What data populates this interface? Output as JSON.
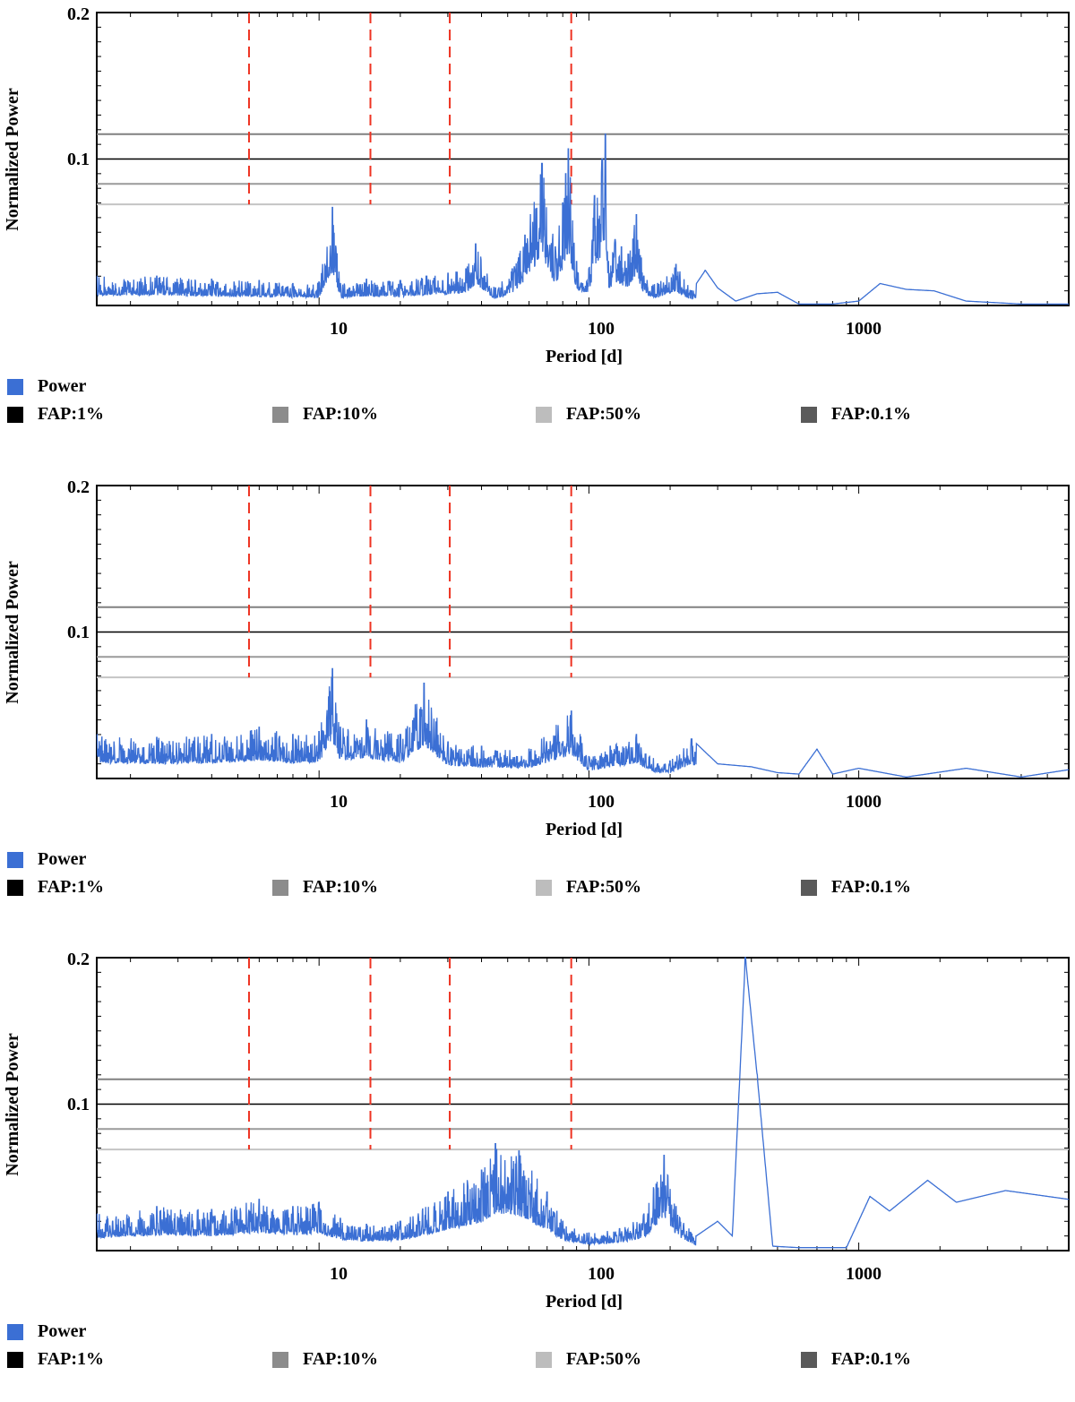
{
  "chart_data": [
    {
      "type": "line",
      "xlabel": "Period [d]",
      "ylabel": "Normalized Power",
      "xscale": "log",
      "xlim": [
        1.5,
        6000
      ],
      "ylim": [
        0,
        0.2
      ],
      "x_ticks": [
        "10",
        "100",
        "1000"
      ],
      "y_ticks": [
        "0.1",
        "0.2"
      ],
      "fap_levels": {
        "FAP:0.1%": 0.117,
        "FAP:1%": 0.1,
        "FAP:10%": 0.083,
        "FAP:50%": 0.069
      },
      "vlines": [
        5.5,
        15.5,
        30.5,
        86
      ],
      "series": [
        {
          "name": "Power",
          "x": [
            1.5,
            2.5,
            4,
            6,
            8,
            10,
            11.2,
            12,
            15,
            20,
            25,
            30,
            35,
            38,
            45,
            52,
            58,
            67,
            75,
            80,
            82,
            84,
            90,
            100,
            105,
            112,
            115,
            118,
            125,
            132,
            140,
            150,
            160,
            180,
            210,
            240,
            270,
            300,
            350,
            420,
            500,
            600,
            800,
            1000,
            1200,
            1500,
            1900,
            2500,
            4000,
            6000
          ],
          "y": [
            0.02,
            0.02,
            0.018,
            0.017,
            0.015,
            0.016,
            0.067,
            0.015,
            0.018,
            0.017,
            0.02,
            0.022,
            0.025,
            0.042,
            0.012,
            0.025,
            0.048,
            0.097,
            0.04,
            0.07,
            0.09,
            0.107,
            0.03,
            0.025,
            0.075,
            0.1,
            0.117,
            0.03,
            0.045,
            0.04,
            0.035,
            0.062,
            0.02,
            0.015,
            0.028,
            0.01,
            0.024,
            0.012,
            0.003,
            0.008,
            0.009,
            0.001,
            0.001,
            0.003,
            0.015,
            0.011,
            0.01,
            0.003,
            0.001,
            0.001
          ]
        }
      ]
    },
    {
      "type": "line",
      "xlabel": "Period [d]",
      "ylabel": "Normalized Power",
      "xscale": "log",
      "xlim": [
        1.5,
        6000
      ],
      "ylim": [
        0,
        0.2
      ],
      "x_ticks": [
        "10",
        "100",
        "1000"
      ],
      "y_ticks": [
        "0.1",
        "0.2"
      ],
      "fap_levels": {
        "FAP:0.1%": 0.117,
        "FAP:1%": 0.1,
        "FAP:10%": 0.083,
        "FAP:50%": 0.069
      },
      "vlines": [
        5.5,
        15.5,
        30.5,
        86
      ],
      "series": [
        {
          "name": "Power",
          "x": [
            1.5,
            2.5,
            4,
            6,
            8,
            10,
            11.2,
            12,
            15,
            20,
            24.5,
            30,
            40,
            60,
            86,
            100,
            120,
            150,
            180,
            200,
            240,
            300,
            400,
            500,
            600,
            700,
            800,
            1000,
            1500,
            2500,
            4000,
            6000
          ],
          "y": [
            0.03,
            0.028,
            0.03,
            0.035,
            0.03,
            0.032,
            0.075,
            0.035,
            0.04,
            0.03,
            0.065,
            0.025,
            0.022,
            0.02,
            0.046,
            0.015,
            0.022,
            0.03,
            0.01,
            0.012,
            0.027,
            0.01,
            0.008,
            0.004,
            0.003,
            0.02,
            0.003,
            0.007,
            0.001,
            0.007,
            0.001,
            0.006
          ]
        }
      ]
    },
    {
      "type": "line",
      "xlabel": "Period [d]",
      "ylabel": "Normalized Power",
      "xscale": "log",
      "xlim": [
        1.5,
        6000
      ],
      "ylim": [
        0,
        0.2
      ],
      "x_ticks": [
        "10",
        "100",
        "1000"
      ],
      "y_ticks": [
        "0.1",
        "0.2"
      ],
      "fap_levels": {
        "FAP:0.1%": 0.117,
        "FAP:1%": 0.1,
        "FAP:10%": 0.083,
        "FAP:50%": 0.069
      },
      "vlines": [
        5.5,
        15.5,
        30.5,
        86
      ],
      "series": [
        {
          "name": "Power",
          "x": [
            1.5,
            2.5,
            4,
            6,
            8,
            10,
            12,
            15,
            20,
            30,
            40,
            45,
            55,
            70,
            80,
            100,
            130,
            160,
            190,
            210,
            250,
            300,
            340,
            380,
            420,
            480,
            600,
            900,
            1100,
            1300,
            1800,
            2300,
            3500,
            6000
          ],
          "y": [
            0.025,
            0.03,
            0.028,
            0.035,
            0.03,
            0.033,
            0.022,
            0.018,
            0.02,
            0.04,
            0.055,
            0.073,
            0.068,
            0.04,
            0.02,
            0.012,
            0.015,
            0.025,
            0.065,
            0.03,
            0.01,
            0.02,
            0.01,
            0.2,
            0.12,
            0.003,
            0.002,
            0.002,
            0.037,
            0.027,
            0.048,
            0.033,
            0.041,
            0.035
          ]
        }
      ]
    }
  ],
  "legend": {
    "power": "Power",
    "fap1": "FAP:1%",
    "fap10": "FAP:10%",
    "fap50": "FAP:50%",
    "fap01": "FAP:0.1%"
  },
  "colors": {
    "power": "#3b6fd4",
    "vline": "#ee3322",
    "fap01": "#808080",
    "fap1": "#000000",
    "fap10": "#9a9a9a",
    "fap50": "#c4c4c4",
    "legend_fap01": "#5a5a5a"
  }
}
